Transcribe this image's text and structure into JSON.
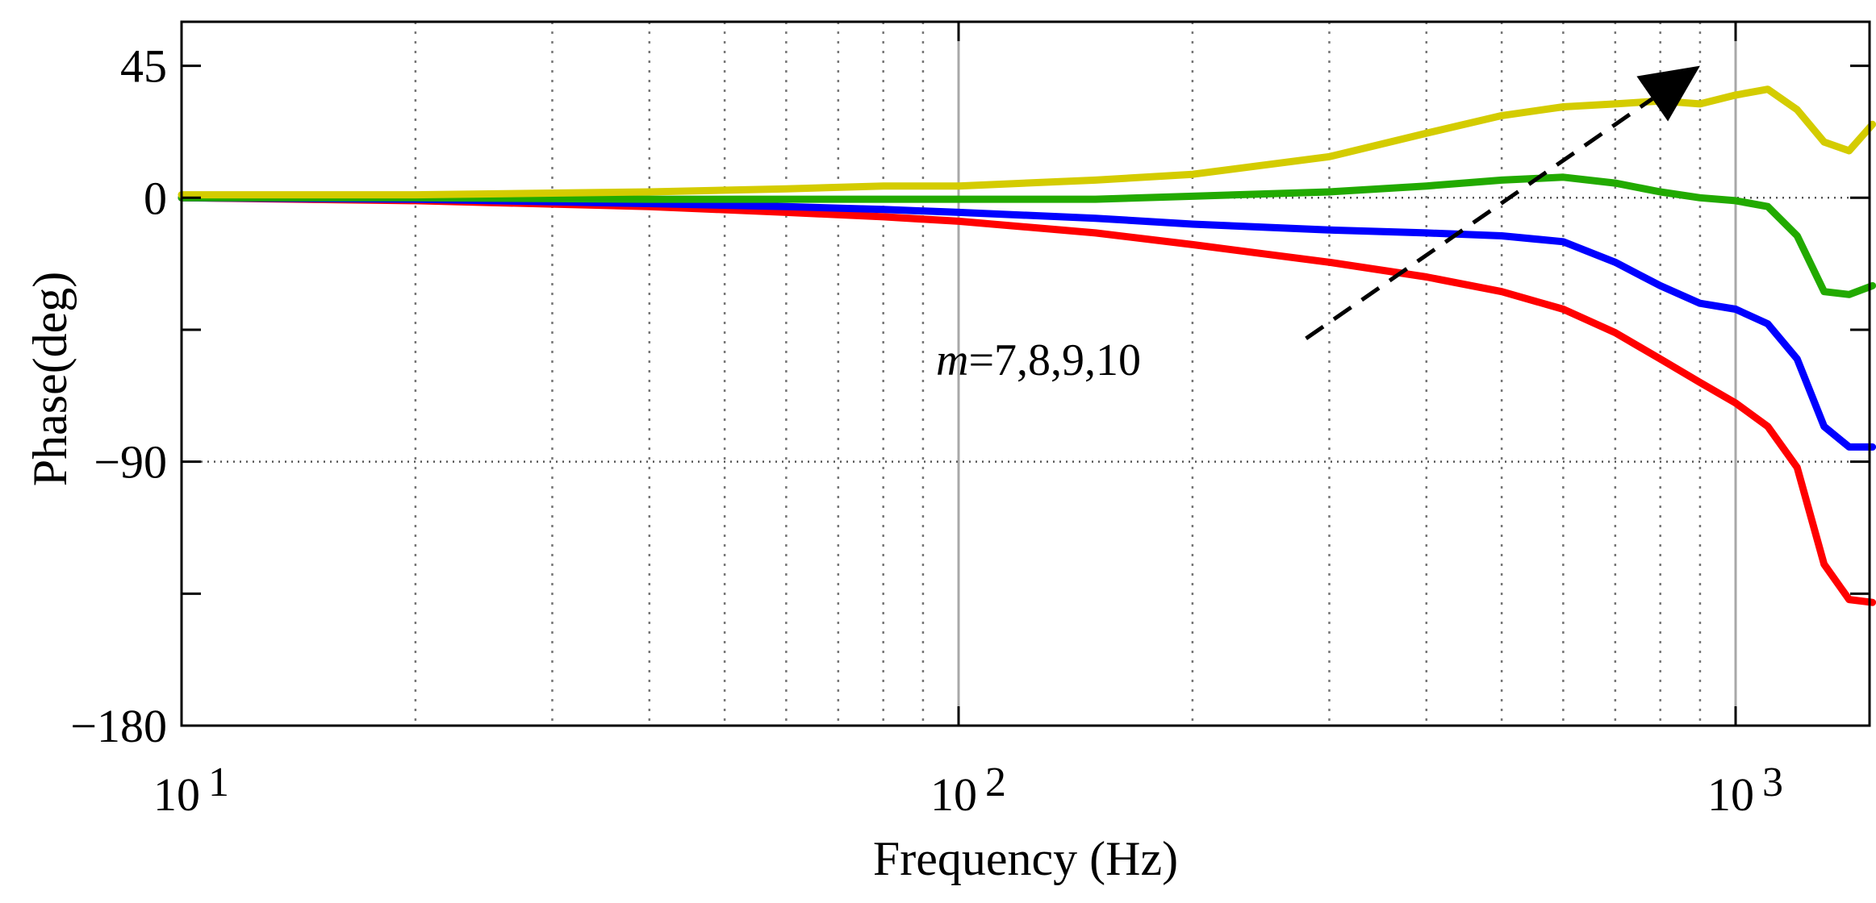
{
  "chart_data": {
    "type": "line",
    "xscale": "log",
    "xlim": [
      10,
      1500
    ],
    "ylim": [
      -180,
      60
    ],
    "xlabel": "Frequency  (Hz)",
    "ylabel": "Phase(deg)",
    "xtick_bases": [
      {
        "value": 10,
        "base": "10",
        "exp": "1"
      },
      {
        "value": 100,
        "base": "10",
        "exp": "2"
      },
      {
        "value": 1000,
        "base": "10",
        "exp": "3"
      }
    ],
    "yticks": [
      {
        "value": 45,
        "label": "45"
      },
      {
        "value": 0,
        "label": "0"
      },
      {
        "value": -45,
        "label": ""
      },
      {
        "value": -90,
        "label": "−90"
      },
      {
        "value": -135,
        "label": ""
      },
      {
        "value": -180,
        "label": "−180"
      }
    ],
    "annotation": {
      "var": "m",
      "text": "=7,8,9,10",
      "arrow_from": [
        280,
        -48
      ],
      "arrow_to": [
        900,
        45
      ]
    },
    "series": [
      {
        "name": "m=7",
        "color": "#ff0000",
        "points": [
          [
            10,
            0
          ],
          [
            20,
            -1
          ],
          [
            40,
            -3
          ],
          [
            60,
            -5
          ],
          [
            80,
            -6.5
          ],
          [
            100,
            -8
          ],
          [
            150,
            -12
          ],
          [
            200,
            -16
          ],
          [
            300,
            -22
          ],
          [
            400,
            -27
          ],
          [
            500,
            -32
          ],
          [
            600,
            -38
          ],
          [
            700,
            -46
          ],
          [
            800,
            -55
          ],
          [
            900,
            -63
          ],
          [
            1000,
            -70
          ],
          [
            1100,
            -78
          ],
          [
            1200,
            -92
          ],
          [
            1300,
            -125
          ],
          [
            1400,
            -137
          ],
          [
            1500,
            -138
          ]
        ]
      },
      {
        "name": "m=8",
        "color": "#0000ff",
        "points": [
          [
            10,
            0
          ],
          [
            20,
            -0.5
          ],
          [
            40,
            -2
          ],
          [
            60,
            -3
          ],
          [
            80,
            -4
          ],
          [
            100,
            -5
          ],
          [
            150,
            -7
          ],
          [
            200,
            -9
          ],
          [
            300,
            -11
          ],
          [
            400,
            -12
          ],
          [
            500,
            -13
          ],
          [
            600,
            -15
          ],
          [
            700,
            -22
          ],
          [
            800,
            -30
          ],
          [
            900,
            -36
          ],
          [
            1000,
            -38
          ],
          [
            1100,
            -43
          ],
          [
            1200,
            -55
          ],
          [
            1300,
            -78
          ],
          [
            1400,
            -85
          ],
          [
            1500,
            -85
          ]
        ]
      },
      {
        "name": "m=9",
        "color": "#22aa00",
        "points": [
          [
            10,
            0
          ],
          [
            20,
            0
          ],
          [
            40,
            -0.5
          ],
          [
            60,
            -0.5
          ],
          [
            80,
            -0.5
          ],
          [
            100,
            -0.5
          ],
          [
            150,
            -0.5
          ],
          [
            200,
            0.5
          ],
          [
            300,
            2
          ],
          [
            400,
            4
          ],
          [
            500,
            6
          ],
          [
            600,
            7
          ],
          [
            700,
            5
          ],
          [
            800,
            2
          ],
          [
            900,
            0
          ],
          [
            1000,
            -1
          ],
          [
            1100,
            -3
          ],
          [
            1200,
            -13
          ],
          [
            1300,
            -32
          ],
          [
            1400,
            -33
          ],
          [
            1500,
            -30
          ]
        ]
      },
      {
        "name": "m=10",
        "color": "#d4cc00",
        "points": [
          [
            10,
            1
          ],
          [
            20,
            1
          ],
          [
            40,
            2
          ],
          [
            60,
            3
          ],
          [
            80,
            4
          ],
          [
            100,
            4
          ],
          [
            150,
            6
          ],
          [
            200,
            8
          ],
          [
            300,
            14
          ],
          [
            400,
            22
          ],
          [
            500,
            28
          ],
          [
            600,
            31
          ],
          [
            700,
            32
          ],
          [
            800,
            33
          ],
          [
            900,
            32
          ],
          [
            1000,
            35
          ],
          [
            1100,
            37
          ],
          [
            1200,
            30
          ],
          [
            1300,
            19
          ],
          [
            1400,
            16
          ],
          [
            1500,
            25
          ]
        ]
      }
    ]
  }
}
